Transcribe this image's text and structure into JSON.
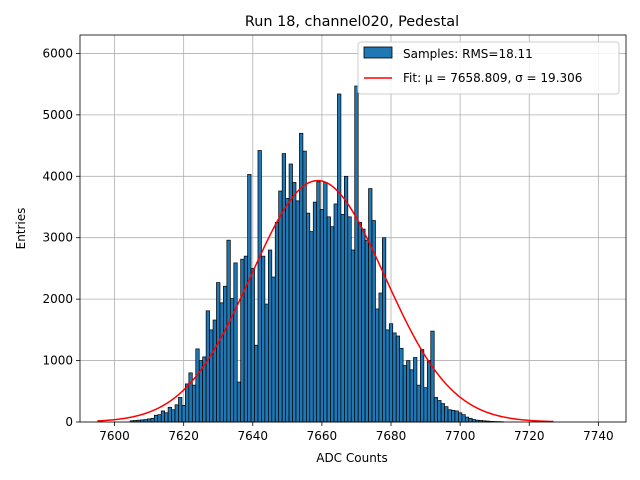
{
  "chart_data": {
    "type": "bar",
    "title": "Run 18, channel020, Pedestal",
    "xlabel": "ADC Counts",
    "ylabel": "Entries",
    "xlim": [
      7590,
      7748
    ],
    "ylim": [
      0,
      6300
    ],
    "xticks": [
      7600,
      7620,
      7640,
      7660,
      7680,
      7700,
      7720,
      7740
    ],
    "yticks": [
      0,
      1000,
      2000,
      3000,
      4000,
      5000,
      6000
    ],
    "grid": true,
    "legend_position": "top-right",
    "colors": {
      "bars": "#1f77b4",
      "bar_edge": "#000000",
      "fit": "#ff0000",
      "grid": "#b0b0b0"
    },
    "series": [
      {
        "name": "Samples: RMS=18.11",
        "type": "histogram",
        "bin_width": 1,
        "x": [
          7605,
          7606,
          7607,
          7608,
          7609,
          7610,
          7611,
          7612,
          7613,
          7614,
          7615,
          7616,
          7617,
          7618,
          7619,
          7620,
          7621,
          7622,
          7623,
          7624,
          7625,
          7626,
          7627,
          7628,
          7629,
          7630,
          7631,
          7632,
          7633,
          7634,
          7635,
          7636,
          7637,
          7638,
          7639,
          7640,
          7641,
          7642,
          7643,
          7644,
          7645,
          7646,
          7647,
          7648,
          7649,
          7650,
          7651,
          7652,
          7653,
          7654,
          7655,
          7656,
          7657,
          7658,
          7659,
          7660,
          7661,
          7662,
          7663,
          7664,
          7665,
          7666,
          7667,
          7668,
          7669,
          7670,
          7671,
          7672,
          7673,
          7674,
          7675,
          7676,
          7677,
          7678,
          7679,
          7680,
          7681,
          7682,
          7683,
          7684,
          7685,
          7686,
          7687,
          7688,
          7689,
          7690,
          7691,
          7692,
          7693,
          7694,
          7695,
          7696,
          7697,
          7698,
          7699,
          7700,
          7701,
          7702,
          7703,
          7704,
          7705,
          7706,
          7707,
          7708,
          7709,
          7710,
          7711,
          7712
        ],
        "values": [
          20,
          25,
          30,
          35,
          40,
          50,
          60,
          110,
          120,
          180,
          150,
          240,
          200,
          280,
          400,
          270,
          620,
          800,
          600,
          1190,
          1000,
          1060,
          1810,
          1500,
          1660,
          2270,
          1940,
          2210,
          2960,
          2010,
          2590,
          650,
          2650,
          2700,
          4030,
          2500,
          1250,
          4420,
          2700,
          1920,
          2800,
          2360,
          3250,
          3760,
          4370,
          3640,
          4200,
          3900,
          3600,
          4700,
          4410,
          3400,
          3100,
          3580,
          3910,
          3460,
          3900,
          3340,
          3180,
          3550,
          5340,
          3380,
          4000,
          3340,
          2800,
          5470,
          3250,
          3140,
          2960,
          3800,
          3280,
          1840,
          2100,
          3000,
          1500,
          1600,
          1450,
          1400,
          1200,
          920,
          1000,
          850,
          1050,
          600,
          1180,
          560,
          1000,
          1480,
          400,
          350,
          300,
          250,
          200,
          190,
          180,
          150,
          120,
          80,
          60,
          40,
          30,
          25,
          20,
          15,
          10,
          8,
          6,
          5
        ]
      },
      {
        "name": "Fit: μ = 7658.809, σ = 19.306",
        "type": "gaussian_fit",
        "mu": 7658.809,
        "sigma": 19.306,
        "amplitude": 3930,
        "x_range": [
          7595,
          7727
        ]
      }
    ]
  }
}
